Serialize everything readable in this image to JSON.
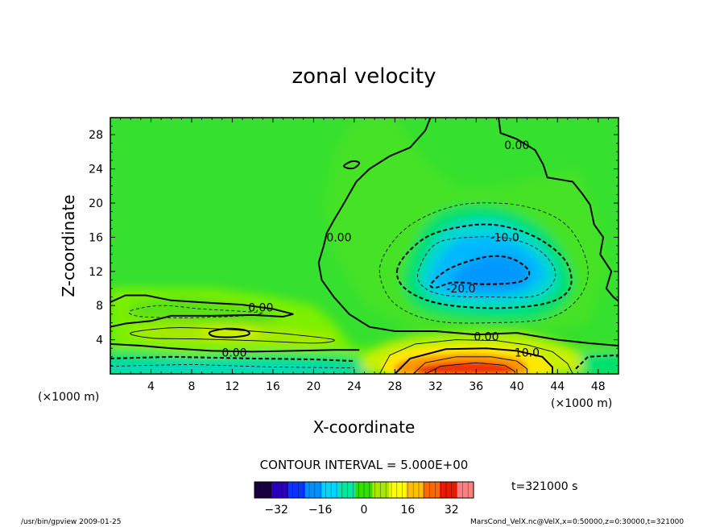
{
  "chart_data": {
    "type": "heatmap",
    "title": "zonal velocity",
    "xlabel": "X-coordinate",
    "ylabel": "Z-coordinate",
    "x_unit": "(×1000 m)",
    "y_unit": "(×1000 m)",
    "xlim": [
      0,
      50
    ],
    "ylim": [
      0,
      30
    ],
    "x_ticks": [
      4,
      8,
      12,
      16,
      20,
      24,
      28,
      32,
      36,
      40,
      44,
      48
    ],
    "y_ticks": [
      4,
      8,
      12,
      16,
      20,
      24,
      28
    ],
    "contour_interval_text": "CONTOUR INTERVAL = 5.000E+00",
    "contour_labels": [
      {
        "text": "0.00",
        "x": 40.0,
        "y": 26.8
      },
      {
        "text": "0.00",
        "x": 22.5,
        "y": 16.0
      },
      {
        "text": "-10.0",
        "x": 38.8,
        "y": 16.0
      },
      {
        "text": "-20.0",
        "x": 34.5,
        "y": 10.0
      },
      {
        "text": "0.00",
        "x": 14.8,
        "y": 7.8
      },
      {
        "text": "0.00",
        "x": 37.0,
        "y": 4.4
      },
      {
        "text": "0.00",
        "x": 12.2,
        "y": 2.5
      },
      {
        "text": "10.0",
        "x": 41.0,
        "y": 2.5
      }
    ],
    "colorbar": {
      "range": [
        -40,
        40
      ],
      "ticks": [
        -32,
        -16,
        0,
        16,
        32
      ],
      "colors": [
        "#1a0040",
        "#2a00b8",
        "#0a33ff",
        "#0090ff",
        "#00d4ff",
        "#00e8a0",
        "#33e000",
        "#a8e800",
        "#ffff00",
        "#ffc000",
        "#ff6a00",
        "#e81a00",
        "#ff8080"
      ]
    },
    "field_colors": {
      "background": "#36e02e",
      "zero_band": "#7cf000",
      "neg_weak": "#00e070",
      "neg_mid": "#00d8d0",
      "neg_strong": "#00b8ff",
      "neg_core": "#0098ff",
      "pos_weak": "#c8f000",
      "pos_mid": "#ffe800",
      "pos_strong": "#ff9800",
      "pos_core": "#f03000"
    },
    "time_label": "t=321000 s"
  },
  "footer": {
    "left": "/usr/bin/gpview  2009-01-25",
    "right": "MarsCond_VelX.nc@VelX,x=0:50000,z=0:30000,t=321000"
  }
}
